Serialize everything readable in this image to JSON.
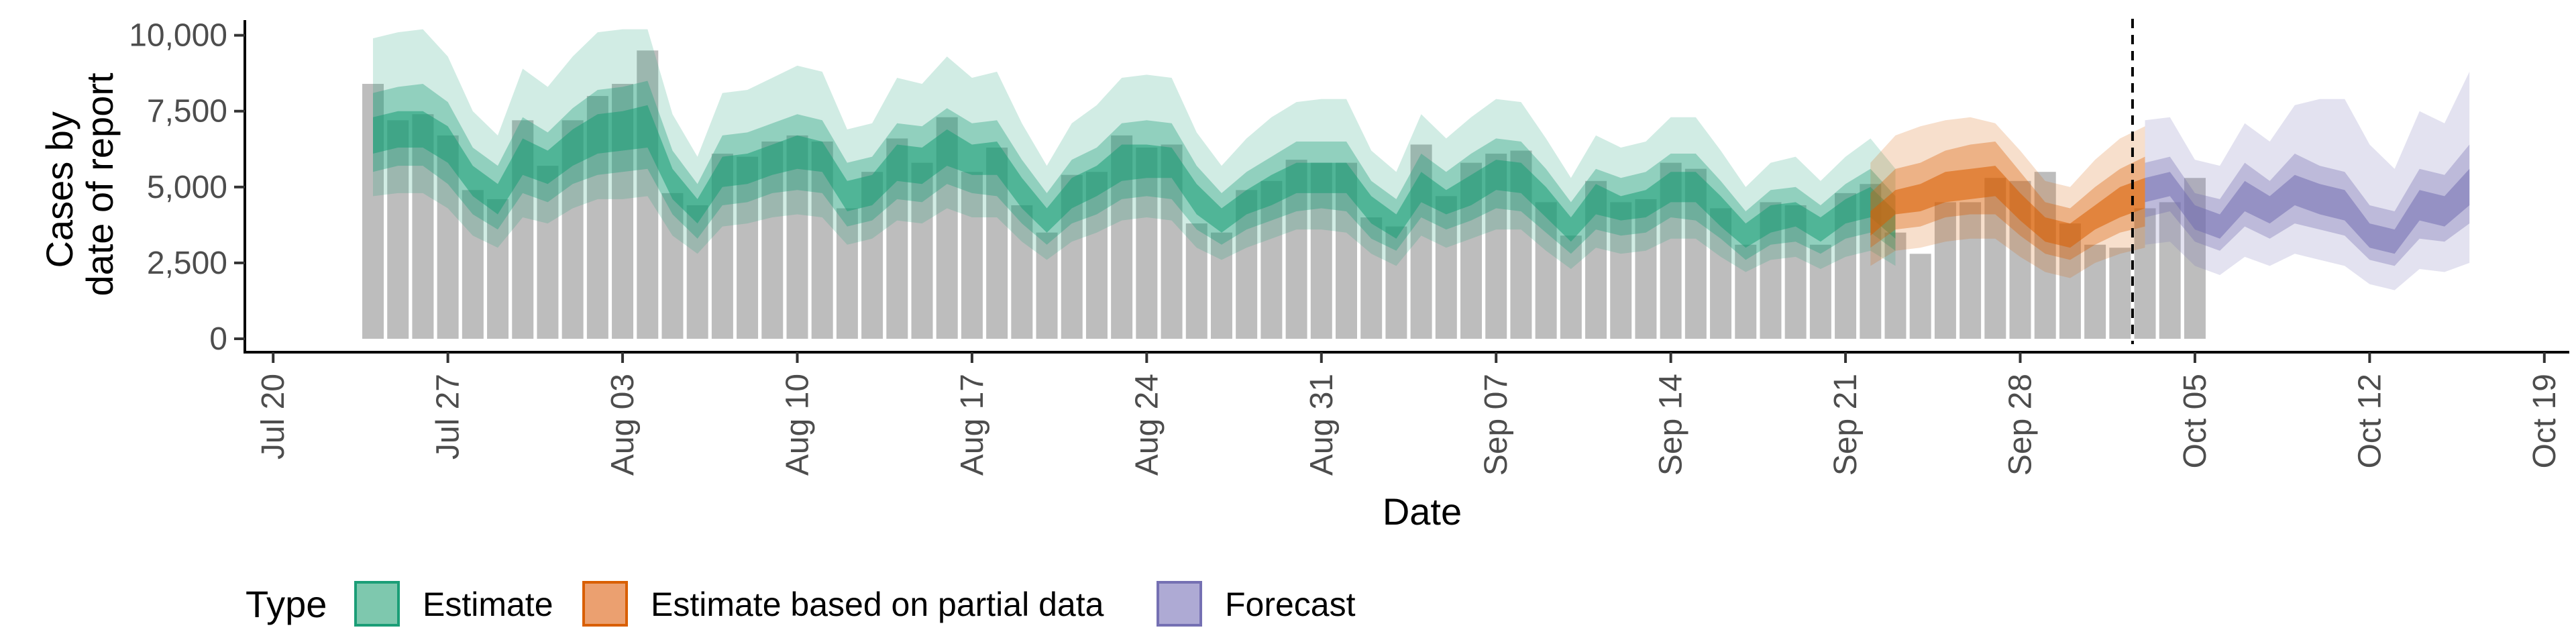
{
  "chart_data": {
    "type": "bar",
    "xlabel": "Date",
    "ylabel_lines": [
      "Cases by",
      "date of report"
    ],
    "ylim": [
      0,
      10500
    ],
    "y_ticks": [
      0,
      2500,
      5000,
      7500,
      10000
    ],
    "y_tick_labels": [
      "0",
      "2,500",
      "5,000",
      "7,500",
      "10,000"
    ],
    "x_range": [
      "2020-07-19",
      "2020-10-20"
    ],
    "x_ticks": [
      "2020-07-20",
      "2020-07-27",
      "2020-08-03",
      "2020-08-10",
      "2020-08-17",
      "2020-08-24",
      "2020-08-31",
      "2020-09-07",
      "2020-09-14",
      "2020-09-21",
      "2020-09-28",
      "2020-10-05",
      "2020-10-12",
      "2020-10-19"
    ],
    "x_tick_labels": [
      "Jul 20",
      "Jul 27",
      "Aug 03",
      "Aug 10",
      "Aug 17",
      "Aug 24",
      "Aug 31",
      "Sep 07",
      "Sep 14",
      "Sep 21",
      "Sep 28",
      "Oct 05",
      "Oct 12",
      "Oct 19"
    ],
    "forecast_start_marker": "2020-10-02",
    "grid": false,
    "legend_position": "bottom",
    "legend": {
      "title": "Type",
      "items": [
        {
          "label": "Estimate",
          "fill": "#7ec8ae",
          "stroke": "#1b9e77"
        },
        {
          "label": "Estimate based on partial data",
          "fill": "#eba070",
          "stroke": "#d95f02"
        },
        {
          "label": "Forecast",
          "fill": "#aeaad4",
          "stroke": "#7570b3"
        }
      ]
    },
    "bars": {
      "name": "Reported cases",
      "color": "#bdbdbd",
      "x_start": "2020-07-24",
      "values": [
        8400,
        7200,
        7400,
        6700,
        4900,
        4600,
        7200,
        5700,
        7200,
        8000,
        8400,
        9500,
        4800,
        4400,
        6100,
        6000,
        6500,
        6700,
        6500,
        4300,
        5500,
        6600,
        5800,
        7300,
        5500,
        6300,
        4400,
        3500,
        5400,
        5500,
        6700,
        6300,
        6400,
        3800,
        3500,
        4900,
        5200,
        5900,
        5800,
        5800,
        4000,
        3700,
        6400,
        4700,
        5800,
        6100,
        6200,
        4500,
        3400,
        5200,
        4500,
        4600,
        5800,
        5600,
        4300,
        3100,
        4500,
        4400,
        3100,
        4800,
        5100,
        3500,
        2800,
        4500,
        4500,
        5300,
        5200,
        5500,
        3800,
        3100,
        3000,
        4300,
        4500,
        5300
      ]
    },
    "bands": [
      {
        "type": "Estimate",
        "x_start": "2020-07-24",
        "median": [
          6700,
          6900,
          6900,
          6400,
          5200,
          4600,
          6000,
          5600,
          6300,
          6700,
          6800,
          7000,
          5100,
          4200,
          5500,
          5600,
          5900,
          6100,
          6000,
          4700,
          4900,
          5800,
          5700,
          6300,
          5900,
          5900,
          4800,
          3900,
          4800,
          5200,
          5800,
          5900,
          5800,
          4600,
          3900,
          4500,
          4900,
          5300,
          5300,
          5300,
          4200,
          3700,
          5000,
          4500,
          4900,
          5400,
          5300,
          4500,
          3600,
          4600,
          4300,
          4500,
          5000,
          5000,
          4200,
          3400,
          4000,
          4100,
          3600,
          4200,
          4500,
          3800
        ],
        "lower_20": [
          6100,
          6300,
          6300,
          5800,
          4700,
          4100,
          5400,
          5100,
          5700,
          6100,
          6200,
          6300,
          4600,
          3800,
          5000,
          5100,
          5400,
          5600,
          5500,
          4200,
          4400,
          5200,
          5100,
          5700,
          5400,
          5400,
          4300,
          3500,
          4300,
          4700,
          5200,
          5300,
          5300,
          4100,
          3500,
          4100,
          4400,
          4800,
          4800,
          4800,
          3800,
          3300,
          4500,
          4100,
          4400,
          4900,
          4800,
          4000,
          3200,
          4100,
          3900,
          4000,
          4500,
          4500,
          3700,
          3000,
          3500,
          3700,
          3200,
          3800,
          4000,
          3300
        ],
        "upper_20": [
          7300,
          7500,
          7500,
          7000,
          5700,
          5100,
          6600,
          6200,
          6900,
          7400,
          7500,
          7700,
          5600,
          4600,
          6000,
          6100,
          6400,
          6700,
          6500,
          5200,
          5400,
          6400,
          6300,
          6900,
          6400,
          6500,
          5300,
          4300,
          5300,
          5700,
          6400,
          6400,
          6300,
          5100,
          4300,
          4900,
          5400,
          5800,
          5800,
          5800,
          4700,
          4100,
          5500,
          4900,
          5400,
          5900,
          5800,
          5000,
          4000,
          5100,
          4700,
          4900,
          5500,
          5500,
          4700,
          3800,
          4400,
          4500,
          4000,
          4600,
          5000,
          4200
        ],
        "lower_50": [
          5500,
          5700,
          5700,
          5100,
          4100,
          3600,
          4800,
          4500,
          5100,
          5400,
          5500,
          5600,
          4100,
          3300,
          4400,
          4500,
          4800,
          4900,
          4800,
          3700,
          3900,
          4600,
          4500,
          5100,
          4800,
          4700,
          3800,
          3100,
          3800,
          4100,
          4600,
          4700,
          4600,
          3600,
          3100,
          3600,
          3900,
          4200,
          4300,
          4200,
          3300,
          2900,
          4000,
          3600,
          3900,
          4300,
          4200,
          3500,
          2800,
          3600,
          3400,
          3500,
          4000,
          3900,
          3300,
          2600,
          3100,
          3200,
          2800,
          3300,
          3500,
          2900
        ],
        "upper_50": [
          8100,
          8300,
          8400,
          7800,
          6300,
          5700,
          7300,
          6800,
          7600,
          8200,
          8300,
          8500,
          6200,
          5100,
          6700,
          6800,
          7100,
          7400,
          7200,
          5800,
          6000,
          7100,
          7000,
          7600,
          7100,
          7200,
          5900,
          4800,
          5900,
          6300,
          7100,
          7200,
          7100,
          5700,
          4800,
          5500,
          6000,
          6500,
          6500,
          6500,
          5200,
          4600,
          6100,
          5500,
          6100,
          6600,
          6500,
          5600,
          4500,
          5600,
          5300,
          5500,
          6100,
          6100,
          5200,
          4200,
          4900,
          5000,
          4400,
          5100,
          5600,
          4700
        ],
        "lower_90": [
          4700,
          4800,
          4800,
          4300,
          3400,
          3000,
          4000,
          3800,
          4300,
          4600,
          4600,
          4700,
          3400,
          2800,
          3700,
          3800,
          4000,
          4100,
          4000,
          3100,
          3300,
          3900,
          3800,
          4300,
          4000,
          4000,
          3200,
          2600,
          3200,
          3500,
          3900,
          4000,
          3900,
          3000,
          2600,
          3000,
          3300,
          3600,
          3600,
          3500,
          2800,
          2400,
          3400,
          3000,
          3300,
          3600,
          3600,
          2900,
          2300,
          3000,
          2800,
          2900,
          3300,
          3300,
          2700,
          2200,
          2600,
          2700,
          2300,
          2700,
          2900,
          2400
        ],
        "upper_90": [
          9900,
          10100,
          10200,
          9300,
          7500,
          6700,
          8900,
          8300,
          9300,
          10100,
          10200,
          10200,
          7400,
          6000,
          8100,
          8200,
          8600,
          9000,
          8800,
          6900,
          7100,
          8600,
          8400,
          9300,
          8600,
          8800,
          7100,
          5700,
          7100,
          7700,
          8600,
          8700,
          8600,
          6800,
          5700,
          6600,
          7300,
          7800,
          7900,
          7900,
          6200,
          5500,
          7400,
          6600,
          7300,
          7900,
          7800,
          6600,
          5300,
          6700,
          6300,
          6500,
          7300,
          7300,
          6200,
          5000,
          5800,
          6000,
          5200,
          6000,
          6600,
          5600
        ]
      },
      {
        "type": "Estimate based on partial data",
        "x_start": "2020-09-22",
        "median": [
          3800,
          4500,
          4600,
          5000,
          5100,
          5200,
          4400,
          3600,
          3400,
          4000,
          4500,
          4800
        ],
        "lower_20": [
          3400,
          4100,
          4200,
          4500,
          4600,
          4700,
          3900,
          3200,
          3000,
          3600,
          4000,
          4300
        ],
        "upper_20": [
          4200,
          4900,
          5100,
          5500,
          5600,
          5700,
          4800,
          4000,
          3800,
          4400,
          5000,
          5300
        ],
        "lower_50": [
          3000,
          3600,
          3700,
          4000,
          4100,
          4100,
          3400,
          2800,
          2600,
          3100,
          3500,
          3700
        ],
        "upper_50": [
          4800,
          5600,
          5800,
          6200,
          6400,
          6500,
          5500,
          4500,
          4300,
          5000,
          5600,
          6000
        ],
        "lower_90": [
          2400,
          2900,
          3000,
          3200,
          3300,
          3300,
          2700,
          2200,
          2000,
          2500,
          2800,
          3000
        ],
        "upper_90": [
          5800,
          6700,
          7000,
          7200,
          7300,
          7100,
          6200,
          5200,
          5000,
          5900,
          6600,
          7000
        ]
      },
      {
        "type": "Forecast",
        "x_start": "2020-10-03",
        "median": [
          4900,
          5100,
          4000,
          3700,
          4700,
          4200,
          4900,
          4600,
          4400,
          3400,
          3200,
          4400,
          4200,
          5000
        ],
        "lower_20": [
          4500,
          4700,
          3600,
          3300,
          4200,
          3800,
          4400,
          4100,
          3900,
          3000,
          2800,
          3900,
          3700,
          4400
        ],
        "upper_20": [
          5300,
          5500,
          4400,
          4100,
          5200,
          4700,
          5400,
          5100,
          4900,
          3800,
          3600,
          4900,
          4700,
          5600
        ],
        "lower_50": [
          4000,
          4200,
          3200,
          2900,
          3700,
          3300,
          3800,
          3600,
          3400,
          2600,
          2400,
          3300,
          3200,
          3800
        ],
        "upper_50": [
          5800,
          6000,
          4800,
          4600,
          5800,
          5200,
          6100,
          5700,
          5500,
          4400,
          4200,
          5600,
          5400,
          6400
        ],
        "lower_90": [
          3100,
          3200,
          2400,
          2100,
          2700,
          2400,
          2800,
          2600,
          2400,
          1800,
          1600,
          2300,
          2200,
          2500
        ],
        "upper_90": [
          7200,
          7300,
          5900,
          5700,
          7100,
          6500,
          7700,
          7900,
          7900,
          6400,
          5600,
          7500,
          7100,
          8800
        ]
      }
    ]
  },
  "colors": {
    "Estimate": "#1b9e77",
    "Estimate based on partial data": "#d95f02",
    "Forecast": "#7570b3",
    "bar": "#bdbdbd",
    "axis": "#000000"
  }
}
